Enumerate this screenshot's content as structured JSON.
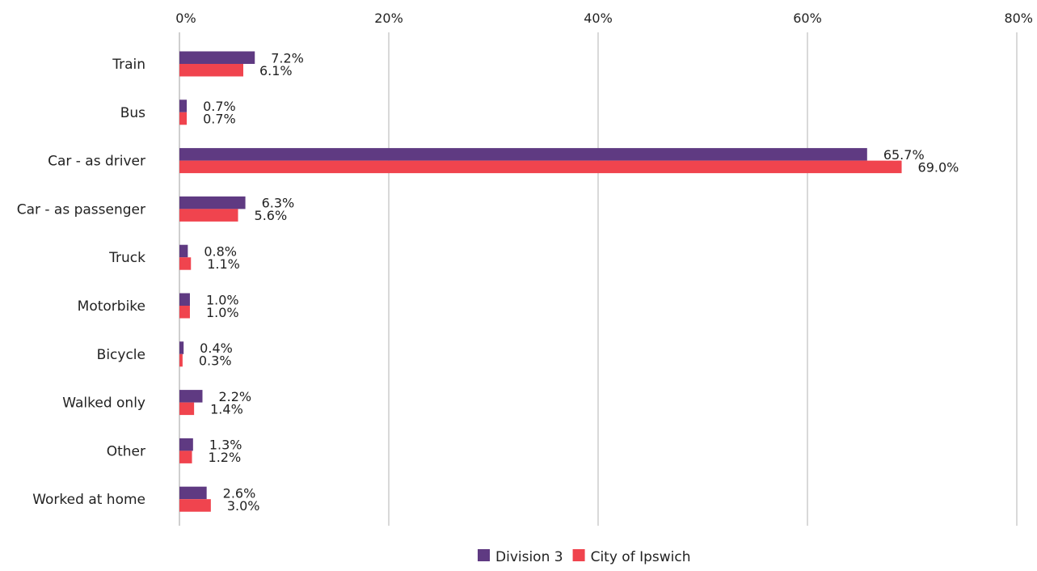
{
  "chart_data": {
    "type": "bar",
    "orientation": "horizontal",
    "categories": [
      "Train",
      "Bus",
      "Car - as driver",
      "Car - as passenger",
      "Truck",
      "Motorbike",
      "Bicycle",
      "Walked only",
      "Other",
      "Worked at home"
    ],
    "series": [
      {
        "name": "Division 3",
        "color": "#5f3a82",
        "values": [
          7.2,
          0.7,
          65.7,
          6.3,
          0.8,
          1.0,
          0.4,
          2.2,
          1.3,
          2.6
        ],
        "labels": [
          "7.2%",
          "0.7%",
          "65.7%",
          "6.3%",
          "0.8%",
          "1.0%",
          "0.4%",
          "2.2%",
          "1.3%",
          "2.6%"
        ]
      },
      {
        "name": "City of Ipswich",
        "color": "#f0444e",
        "values": [
          6.1,
          0.7,
          69.0,
          5.6,
          1.1,
          1.0,
          0.3,
          1.4,
          1.2,
          3.0
        ],
        "labels": [
          "6.1%",
          "0.7%",
          "69.0%",
          "5.6%",
          "1.1%",
          "1.0%",
          "0.3%",
          "1.4%",
          "1.2%",
          "3.0%"
        ]
      }
    ],
    "x_ticks": [
      0,
      20,
      40,
      60,
      80
    ],
    "x_tick_labels": [
      "0%",
      "20%",
      "40%",
      "60%",
      "80%"
    ],
    "xlim": [
      0,
      80
    ],
    "x_axis_position": "top",
    "grid": true,
    "legend_position": "bottom-center",
    "title": "",
    "xlabel": "",
    "ylabel": ""
  }
}
